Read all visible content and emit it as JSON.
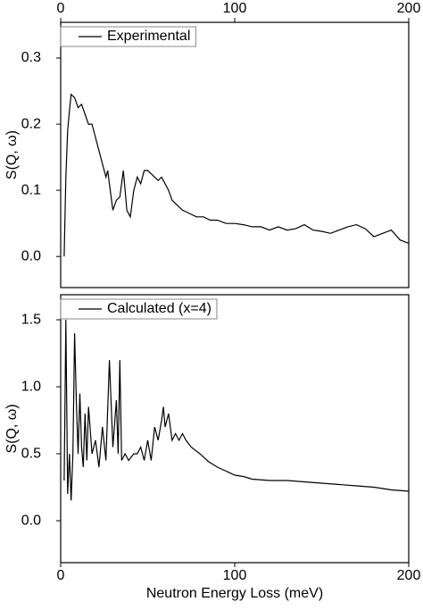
{
  "chart_data": [
    {
      "type": "line",
      "y_label": "S(Q, ω)",
      "xaxis_position": "top",
      "legend": "upper left",
      "xlim": [
        0,
        200
      ],
      "xticks": [
        0,
        100,
        200
      ],
      "ylim": [
        -0.047,
        0.354
      ],
      "yticks": [
        {
          "value": 0,
          "label": "0.0"
        },
        0.1,
        0.2,
        0.3
      ],
      "x": [
        2,
        3,
        4,
        5,
        6,
        8,
        10,
        12,
        14,
        16,
        18,
        20,
        22,
        24,
        26,
        27,
        28,
        29,
        30,
        32,
        34,
        36,
        37,
        38,
        40,
        42,
        44,
        46,
        48,
        50,
        52,
        54,
        56,
        58,
        60,
        62,
        64,
        66,
        68,
        70,
        74,
        78,
        82,
        86,
        90,
        95,
        100,
        105,
        110,
        115,
        120,
        125,
        130,
        135,
        140,
        145,
        150,
        155,
        160,
        165,
        170,
        175,
        180,
        185,
        190,
        195,
        200
      ],
      "series": [
        {
          "name": "Experimental",
          "color": "#000000",
          "values": [
            0.0,
            0.12,
            0.19,
            0.22,
            0.245,
            0.24,
            0.225,
            0.23,
            0.215,
            0.2,
            0.2,
            0.18,
            0.16,
            0.14,
            0.12,
            0.13,
            0.11,
            0.09,
            0.07,
            0.085,
            0.09,
            0.13,
            0.1,
            0.07,
            0.06,
            0.1,
            0.12,
            0.11,
            0.13,
            0.13,
            0.125,
            0.12,
            0.115,
            0.12,
            0.11,
            0.1,
            0.085,
            0.08,
            0.075,
            0.07,
            0.065,
            0.06,
            0.06,
            0.055,
            0.055,
            0.05,
            0.05,
            0.048,
            0.045,
            0.045,
            0.04,
            0.045,
            0.04,
            0.042,
            0.048,
            0.04,
            0.038,
            0.035,
            0.04,
            0.045,
            0.048,
            0.042,
            0.03,
            0.035,
            0.04,
            0.025,
            0.02
          ]
        }
      ]
    },
    {
      "type": "line",
      "y_label": "S(Q, ω)",
      "x_label": "Neutron Energy Loss (meV)",
      "xaxis_position": "bottom",
      "legend": "upper left",
      "xlim": [
        0,
        200
      ],
      "xticks": [
        0,
        100,
        200
      ],
      "ylim": [
        -0.313,
        1.687
      ],
      "yticks": [
        {
          "value": 0,
          "label": "0.0"
        },
        0.5,
        {
          "value": 1,
          "label": "1.0"
        },
        1.5
      ],
      "x": [
        2,
        3,
        4,
        5,
        6,
        7,
        8,
        9,
        10,
        11,
        12,
        13,
        14,
        15,
        16,
        18,
        20,
        22,
        24,
        26,
        28,
        30,
        32,
        33,
        34,
        35,
        37,
        39,
        42,
        44,
        46,
        48,
        50,
        52,
        54,
        56,
        58,
        59,
        60,
        62,
        64,
        66,
        68,
        70,
        72,
        75,
        80,
        85,
        90,
        95,
        100,
        105,
        110,
        120,
        130,
        140,
        150,
        160,
        170,
        180,
        190,
        200
      ],
      "series": [
        {
          "name": "Calculated (x=4)",
          "color": "#000000",
          "values": [
            0.3,
            1.5,
            0.2,
            0.5,
            0.15,
            0.5,
            1.4,
            0.9,
            0.5,
            0.95,
            0.55,
            0.4,
            0.8,
            0.45,
            0.85,
            0.5,
            0.6,
            0.4,
            0.7,
            0.45,
            1.2,
            0.55,
            0.9,
            0.5,
            1.2,
            0.45,
            0.5,
            0.45,
            0.5,
            0.5,
            0.55,
            0.45,
            0.6,
            0.45,
            0.7,
            0.6,
            0.75,
            0.85,
            0.7,
            0.8,
            0.6,
            0.65,
            0.6,
            0.65,
            0.6,
            0.55,
            0.5,
            0.44,
            0.4,
            0.37,
            0.34,
            0.33,
            0.31,
            0.3,
            0.3,
            0.29,
            0.28,
            0.27,
            0.26,
            0.25,
            0.23,
            0.22
          ]
        }
      ]
    }
  ]
}
